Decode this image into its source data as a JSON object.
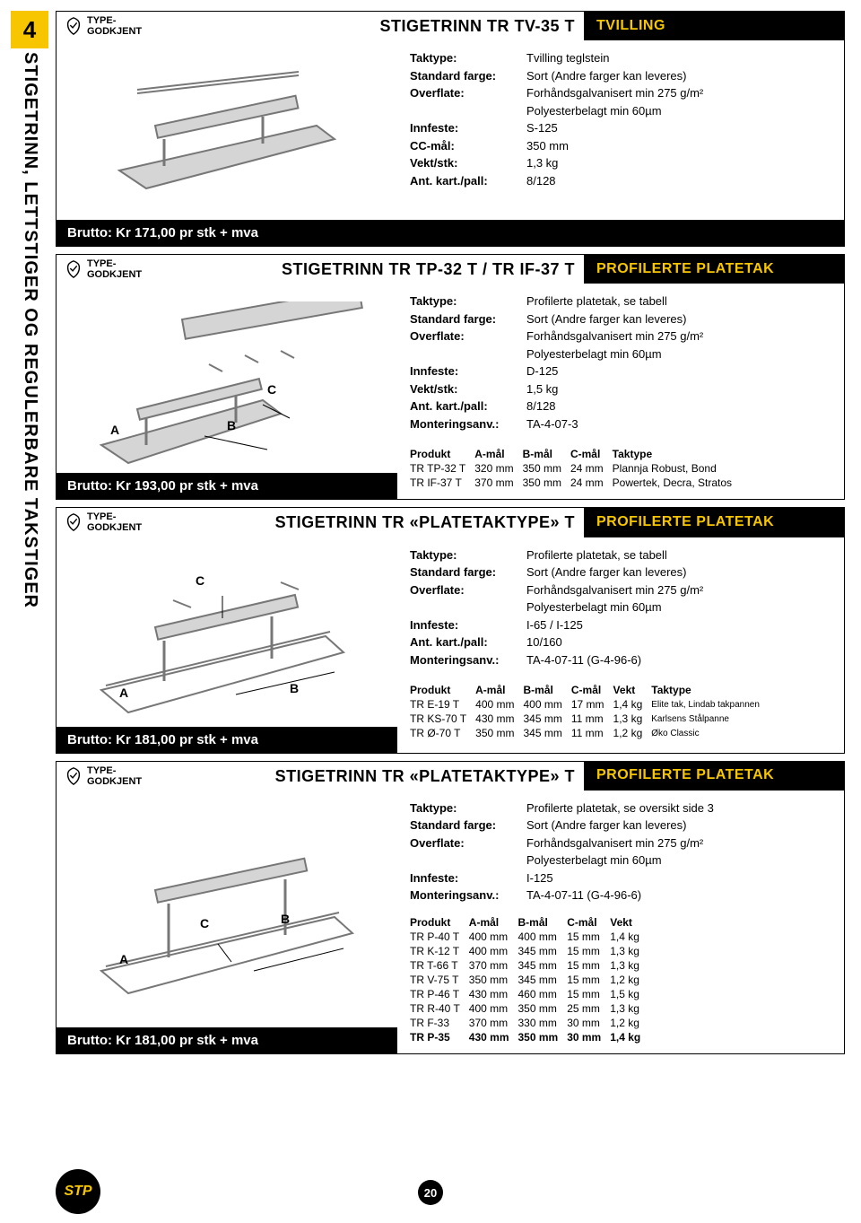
{
  "page_number_side": "4",
  "side_title": "STIGETRINN, LETTSTIGER OG REGULERBARE TAKSTIGER",
  "type_badge": "TYPE-\nGODKJENT",
  "footer_page": "20",
  "stp_logo": "STP",
  "colors": {
    "accent": "#f7c600",
    "header_bg": "#000000",
    "header_text": "#f7c600",
    "price_bg": "#000000",
    "price_text": "#ffffff",
    "sketch_fill": "#d0d0d0",
    "sketch_stroke": "#888888"
  },
  "block1": {
    "title": "STIGETRINN TR TV-35 T",
    "category": "TVILLING",
    "price": "Brutto: Kr 171,00 pr stk + mva",
    "specs": [
      {
        "label": "Taktype:",
        "value": "Tvilling teglstein"
      },
      {
        "label": "Standard farge:",
        "value": "Sort (Andre farger kan leveres)"
      },
      {
        "label": "Overflate:",
        "value": "Forhåndsgalvanisert min 275 g/m²"
      },
      {
        "label": "",
        "value": "Polyesterbelagt min 60µm"
      },
      {
        "label": "Innfeste:",
        "value": "S-125"
      },
      {
        "label": "CC-mål:",
        "value": "350 mm"
      },
      {
        "label": "Vekt/stk:",
        "value": "1,3 kg"
      },
      {
        "label": "Ant. kart./pall:",
        "value": "8/128"
      }
    ]
  },
  "block2": {
    "title": "STIGETRINN TR TP-32 T / TR IF-37 T",
    "category": "PROFILERTE PLATETAK",
    "price": "Brutto: Kr 193,00 pr stk + mva",
    "specs": [
      {
        "label": "Taktype:",
        "value": "Profilerte platetak, se tabell"
      },
      {
        "label": "Standard farge:",
        "value": "Sort (Andre farger kan leveres)"
      },
      {
        "label": "Overflate:",
        "value": "Forhåndsgalvanisert min 275 g/m²"
      },
      {
        "label": "",
        "value": "Polyesterbelagt min 60µm"
      },
      {
        "label": "Innfeste:",
        "value": "D-125"
      },
      {
        "label": "Vekt/stk:",
        "value": "1,5 kg"
      },
      {
        "label": "Ant. kart./pall:",
        "value": "8/128"
      },
      {
        "label": "Monteringsanv.:",
        "value": "TA-4-07-3"
      }
    ],
    "table": {
      "headers": [
        "Produkt",
        "A-mål",
        "B-mål",
        "C-mål",
        "Taktype"
      ],
      "rows": [
        [
          "TR TP-32 T",
          "320 mm",
          "350 mm",
          "24 mm",
          "Plannja Robust, Bond"
        ],
        [
          "TR IF-37 T",
          "370 mm",
          "350 mm",
          "24 mm",
          "Powertek, Decra, Stratos"
        ]
      ]
    },
    "dims": {
      "A": "A",
      "B": "B",
      "C": "C"
    }
  },
  "block3": {
    "title": "STIGETRINN TR «PLATETAKTYPE» T",
    "category": "PROFILERTE PLATETAK",
    "price": "Brutto: Kr 181,00 pr stk + mva",
    "specs": [
      {
        "label": "Taktype:",
        "value": "Profilerte platetak, se tabell"
      },
      {
        "label": "Standard farge:",
        "value": "Sort (Andre farger kan leveres)"
      },
      {
        "label": "Overflate:",
        "value": "Forhåndsgalvanisert min 275 g/m²"
      },
      {
        "label": "",
        "value": "Polyesterbelagt min 60µm"
      },
      {
        "label": "Innfeste:",
        "value": "I-65 / I-125"
      },
      {
        "label": "Ant. kart./pall:",
        "value": "10/160"
      },
      {
        "label": "Monteringsanv.:",
        "value": "TA-4-07-11 (G-4-96-6)"
      }
    ],
    "table": {
      "headers": [
        "Produkt",
        "A-mål",
        "B-mål",
        "C-mål",
        "Vekt",
        "Taktype"
      ],
      "rows": [
        [
          "TR E-19 T",
          "400 mm",
          "400 mm",
          "17 mm",
          "1,4 kg",
          "Elite tak, Lindab takpannen"
        ],
        [
          "TR KS-70 T",
          "430 mm",
          "345 mm",
          "11 mm",
          "1,3 kg",
          "Karlsens Stålpanne"
        ],
        [
          "TR Ø-70 T",
          "350 mm",
          "345 mm",
          "11 mm",
          "1,2 kg",
          "Øko Classic"
        ]
      ]
    },
    "dims": {
      "A": "A",
      "B": "B",
      "C": "C"
    }
  },
  "block4": {
    "title": "STIGETRINN TR «PLATETAKTYPE» T",
    "category": "PROFILERTE PLATETAK",
    "price": "Brutto: Kr 181,00 pr stk + mva",
    "specs": [
      {
        "label": "Taktype:",
        "value": "Profilerte platetak, se oversikt side 3"
      },
      {
        "label": "Standard farge:",
        "value": "Sort (Andre farger kan leveres)"
      },
      {
        "label": "Overflate:",
        "value": "Forhåndsgalvanisert min 275 g/m²"
      },
      {
        "label": "",
        "value": "Polyesterbelagt min 60µm"
      },
      {
        "label": "Innfeste:",
        "value": "I-125"
      },
      {
        "label": "Monteringsanv.:",
        "value": "TA-4-07-11 (G-4-96-6)"
      }
    ],
    "table": {
      "headers": [
        "Produkt",
        "A-mål",
        "B-mål",
        "C-mål",
        "Vekt"
      ],
      "rows": [
        [
          "TR P-40 T",
          "400 mm",
          "400 mm",
          "15 mm",
          "1,4 kg"
        ],
        [
          "TR K-12 T",
          "400 mm",
          "345 mm",
          "15 mm",
          "1,3 kg"
        ],
        [
          "TR T-66 T",
          "370 mm",
          "345 mm",
          "15 mm",
          "1,3 kg"
        ],
        [
          "TR V-75 T",
          "350 mm",
          "345 mm",
          "15 mm",
          "1,2 kg"
        ],
        [
          "TR P-46 T",
          "430 mm",
          "460 mm",
          "15 mm",
          "1,5 kg"
        ],
        [
          "TR R-40 T",
          "400 mm",
          "350 mm",
          "25 mm",
          "1,3 kg"
        ],
        [
          "TR F-33",
          "370 mm",
          "330 mm",
          "30 mm",
          "1,2 kg"
        ],
        [
          "TR P-35",
          "430 mm",
          "350 mm",
          "30 mm",
          "1,4 kg"
        ]
      ]
    },
    "dims": {
      "A": "A",
      "B": "B",
      "C": "C"
    }
  }
}
